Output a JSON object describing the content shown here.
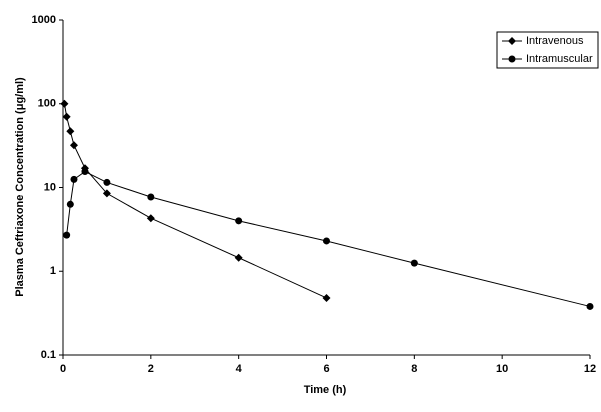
{
  "chart_data": {
    "type": "line",
    "xlabel": "Time (h)",
    "ylabel": "Plasma Ceftriaxone Concentration (μg/ml)",
    "ylog": true,
    "xlim": [
      0,
      12
    ],
    "xticks": [
      0,
      2,
      4,
      6,
      8,
      10,
      12
    ],
    "ylim": [
      0.1,
      1000
    ],
    "yticks": [
      0.1,
      1,
      10,
      100,
      1000
    ],
    "legend": "top-right",
    "series": [
      {
        "name": "Intravenous",
        "color": "#000000",
        "marker": "diamond",
        "x": [
          0.033,
          0.083,
          0.167,
          0.25,
          0.5,
          1,
          2,
          4,
          6
        ],
        "values": [
          100,
          70,
          47,
          32,
          17,
          8.5,
          4.3,
          1.45,
          0.48
        ]
      },
      {
        "name": "Intramuscular",
        "color": "#000000",
        "marker": "circle",
        "x": [
          0.083,
          0.167,
          0.25,
          0.5,
          1,
          2,
          4,
          6,
          8,
          12
        ],
        "values": [
          2.7,
          6.3,
          12.5,
          15.5,
          11.5,
          7.7,
          4,
          2.3,
          1.25,
          0.38
        ]
      }
    ]
  }
}
